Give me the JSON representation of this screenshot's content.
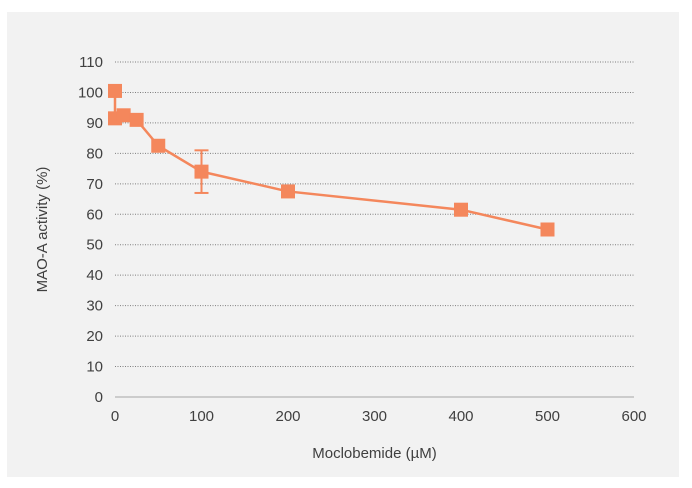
{
  "chart_data": {
    "type": "line",
    "title": "",
    "xlabel": "Moclobemide (µM)",
    "ylabel": "MAO-A activity (%)",
    "xlim": [
      0,
      600
    ],
    "ylim": [
      0,
      110
    ],
    "x_ticks": [
      0,
      100,
      200,
      300,
      400,
      500,
      600
    ],
    "y_ticks": [
      0,
      10,
      20,
      30,
      40,
      50,
      60,
      70,
      80,
      90,
      100,
      110
    ],
    "grid": "horizontal-dotted",
    "legend": "none",
    "series": [
      {
        "color": "#f4875c",
        "marker": "square",
        "x": [
          0,
          0,
          10,
          25,
          50,
          100,
          200,
          400,
          500
        ],
        "y": [
          100.5,
          91.5,
          92.5,
          91,
          82.5,
          74,
          67.5,
          61.5,
          55
        ],
        "y_err": [
          0,
          0,
          0,
          0,
          0,
          7,
          0,
          0,
          0
        ]
      }
    ]
  }
}
